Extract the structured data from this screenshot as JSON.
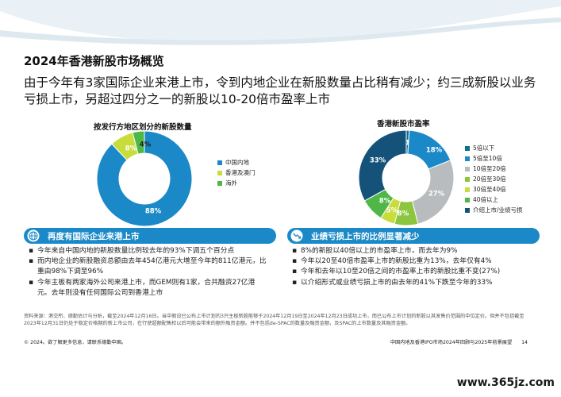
{
  "page": {
    "title": "2024年香港新股市场概览",
    "headline": "由于今年有3家国际企业来港上市，令到内地企业在新股数量占比稍有减少；约三成新股以业务亏损上市，另超过四分之一的新股以10-20倍市盈率上市"
  },
  "colors": {
    "blue": "#1b89c8",
    "dark_teal": "#0b6f8f",
    "green": "#8cc63f",
    "mid_green": "#4eb748",
    "lime": "#c8dc3c",
    "gray": "#b9bcbe",
    "yellow_green": "#a4c93b",
    "navy": "#14527a"
  },
  "chart_data": [
    {
      "type": "pie",
      "title": "按发行方地区划分的新股数量",
      "categories": [
        "中国内地",
        "香港及澳门",
        "海外"
      ],
      "values": [
        88,
        8,
        4
      ],
      "labels": [
        "88%",
        "8%",
        "4%"
      ],
      "colors": [
        "#1b89c8",
        "#c8dc3c",
        "#4eb748"
      ],
      "legend_position": "right"
    },
    {
      "type": "pie",
      "title": "香港新股市盈率",
      "categories": [
        "5倍以下",
        "5倍至10倍",
        "10倍至20倍",
        "20倍至30倍",
        "30倍至40倍",
        "40倍以上",
        "介绍上市/业绩亏损"
      ],
      "values": [
        1,
        18,
        27,
        8,
        5,
        8,
        33
      ],
      "labels": [
        "1%",
        "18%",
        "27%",
        "8%",
        "5%",
        "8%",
        "33%"
      ],
      "colors": [
        "#0b6f8f",
        "#1b89c8",
        "#b9bcbe",
        "#8cc63f",
        "#c8dc3c",
        "#4eb748",
        "#14527a"
      ],
      "legend_position": "right"
    }
  ],
  "left_panel": {
    "banner": "再度有国际企业来港上市",
    "bullets": [
      "今年来自中国内地的新股数量比例较去年的93%下调五个百分点",
      "而内地企业的新股融资总额由去年454亿港元大增至今年的811亿港元，比重由98%下调至96%",
      "今年主板有两家海外公司来港上市，而GEM则有1家，合共融资27亿港元。去年则没有任何国际公司到香港上市"
    ]
  },
  "right_panel": {
    "banner": "业绩亏损上市的比例显著减少",
    "bullets": [
      "8%的新股以40倍以上的市盈率上市，而去年为9%",
      "今年以20至40倍市盈率上市的新股比重为13%，去年仅有4%",
      "今年和去年以10至20倍之间的市盈率上市的新股比重不变(27%)",
      "以介绍形式或业绩亏损上市的由去年的41%下跌至今年的33%"
    ]
  },
  "footer": {
    "note": "资料来源：港交所、德勤估计与分析，截至2024年12月16日。当中假设已公布上市计划的3只主板新股能够于2024年12月19日至2024年12月23日成功上市，而已公布上市计划的新股以其发售价范围的中位定价。但并不包括截至2023年12月31日仍处于稳定价格期的新上市公司，在行使超额配售权以后可能会带来的额外融资金额。并不包括de-SPAC的数量及融资金额，及SPAC的上市数量及其融资金额。",
    "copyright": "© 2024。欲了解更多信息，请联系德勤中国。",
    "report": "中国内地及香港IPO市场2024年回顾与2025年前景展望",
    "page_number": "14",
    "watermark": "www.365jz.com"
  }
}
